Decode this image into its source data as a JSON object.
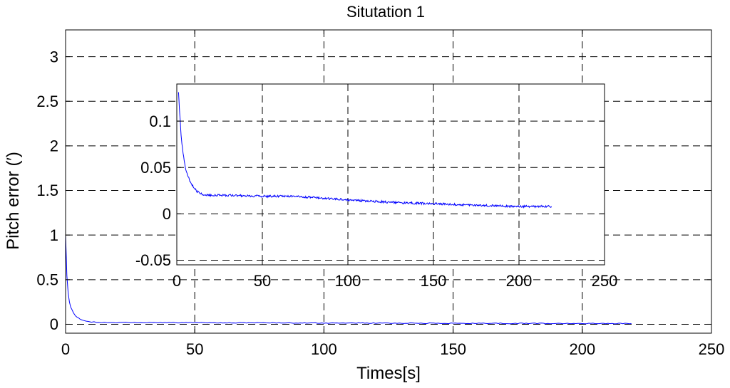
{
  "chart_data": [
    {
      "type": "line",
      "title": "Situtation 1",
      "xlabel": "Times[s]",
      "ylabel": "Pitch error (′)",
      "xlim": [
        0,
        250
      ],
      "ylim": [
        -0.1,
        3.3
      ],
      "xticks": [
        0,
        50,
        100,
        150,
        200,
        250
      ],
      "xtick_labels": [
        "0",
        "50",
        "100",
        "150",
        "200",
        "250"
      ],
      "yticks": [
        0,
        0.5,
        1,
        1.5,
        2,
        2.5,
        3
      ],
      "ytick_labels": [
        "0",
        "0.5",
        "1",
        "1.5",
        "2",
        "2.5",
        "3"
      ],
      "grid": true,
      "series": [
        {
          "color": "#0000ff",
          "x": [
            0,
            0.5,
            1,
            1.5,
            2,
            3,
            4,
            5,
            6,
            8,
            10,
            12,
            15,
            20,
            30,
            50,
            100,
            150,
            200,
            219
          ],
          "y": [
            1.0,
            0.55,
            0.35,
            0.25,
            0.19,
            0.13,
            0.09,
            0.07,
            0.05,
            0.035,
            0.027,
            0.022,
            0.02,
            0.02,
            0.019,
            0.018,
            0.014,
            0.011,
            0.009,
            0.008
          ]
        }
      ]
    },
    {
      "type": "line",
      "title": "",
      "xlabel": "",
      "ylabel": "",
      "xlim": [
        0,
        250
      ],
      "ylim": [
        -0.055,
        0.14
      ],
      "xticks": [
        0,
        50,
        100,
        150,
        200,
        250
      ],
      "xtick_labels": [
        "0",
        "50",
        "100",
        "150",
        "200",
        "250"
      ],
      "yticks": [
        -0.05,
        0,
        0.05,
        0.1
      ],
      "ytick_labels": [
        "-0.05",
        "0",
        "0.05",
        "0.1"
      ],
      "grid": true,
      "series": [
        {
          "color": "#0000ff",
          "x": [
            1,
            1.5,
            2,
            2.5,
            3,
            4,
            5,
            6,
            8,
            10,
            12,
            15,
            20,
            30,
            50,
            70,
            100,
            130,
            150,
            180,
            200,
            219
          ],
          "y": [
            0.13,
            0.115,
            0.1,
            0.085,
            0.075,
            0.062,
            0.05,
            0.043,
            0.034,
            0.028,
            0.024,
            0.021,
            0.02,
            0.02,
            0.019,
            0.019,
            0.015,
            0.012,
            0.011,
            0.009,
            0.008,
            0.008
          ]
        }
      ]
    }
  ]
}
